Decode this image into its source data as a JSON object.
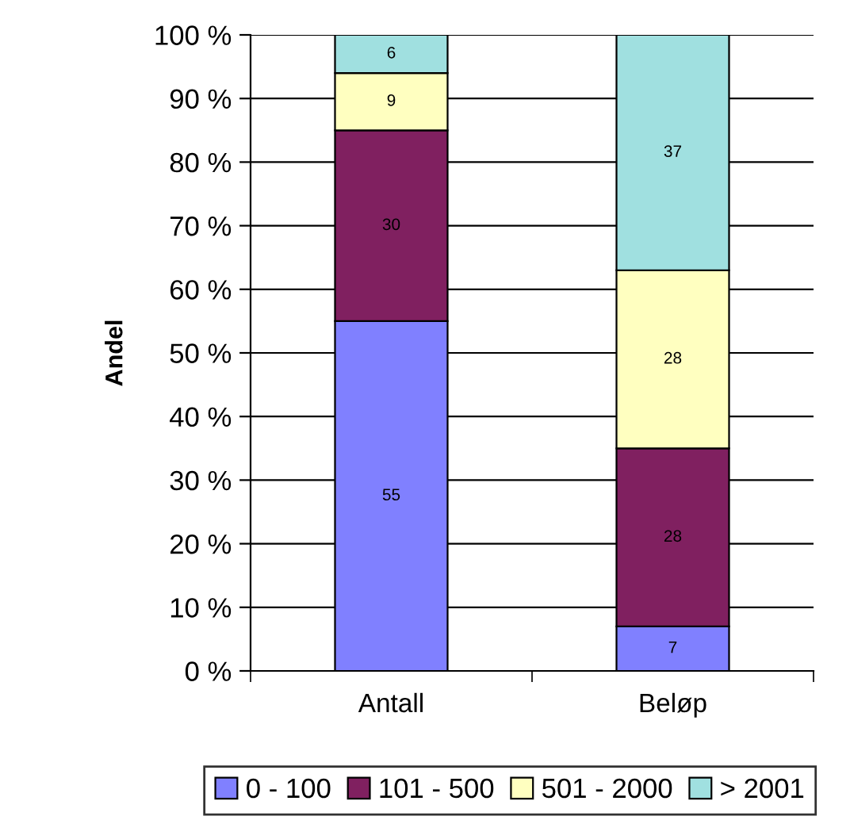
{
  "chart_data": {
    "type": "bar",
    "stacked": true,
    "ylabel": "Andel",
    "categories": [
      "Antall",
      "Beløp"
    ],
    "series": [
      {
        "name": "0 - 100",
        "color": "#8080ff",
        "values": [
          55,
          7
        ]
      },
      {
        "name": "101 - 500",
        "color": "#802060",
        "values": [
          30,
          28
        ]
      },
      {
        "name": "501 - 2000",
        "color": "#ffffc0",
        "values": [
          9,
          28
        ]
      },
      {
        "name": "> 2001",
        "color": "#a0e0e0",
        "values": [
          6,
          37
        ]
      }
    ],
    "ylim": [
      0,
      100
    ],
    "yticks": [
      {
        "value": 0,
        "label": "0 %"
      },
      {
        "value": 10,
        "label": "10 %"
      },
      {
        "value": 20,
        "label": "20 %"
      },
      {
        "value": 30,
        "label": "30 %"
      },
      {
        "value": 40,
        "label": "40 %"
      },
      {
        "value": 50,
        "label": "50 %"
      },
      {
        "value": 60,
        "label": "60 %"
      },
      {
        "value": 70,
        "label": "70 %"
      },
      {
        "value": 80,
        "label": "80 %"
      },
      {
        "value": 90,
        "label": "90 %"
      },
      {
        "value": 100,
        "label": "100 %"
      }
    ],
    "grid": "y",
    "legend": "bottom",
    "data_labels": true
  }
}
